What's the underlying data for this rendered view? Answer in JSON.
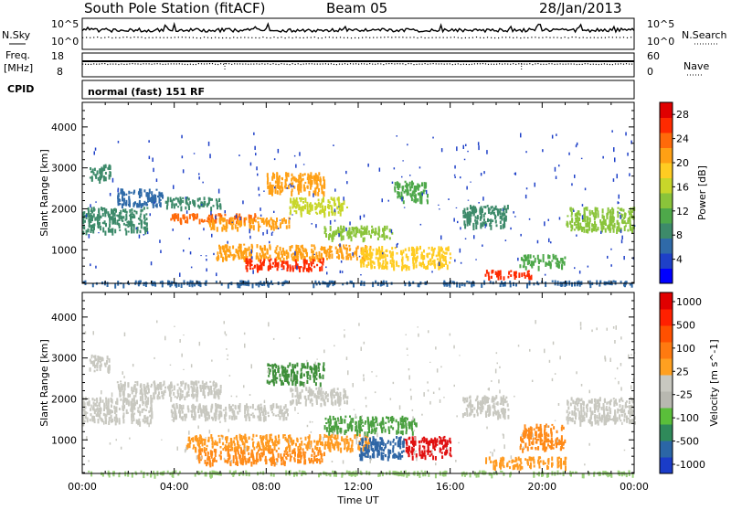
{
  "header": {
    "station": "South Pole Station (fitACF)",
    "beam": "Beam 05",
    "date": "28/Jan/2013"
  },
  "panels": {
    "nsky": {
      "left_label": "N.Sky",
      "right_label": "N.Search",
      "ticks_left": [
        "10^5",
        "10^0"
      ],
      "ticks_right": [
        "10^5",
        "10^0"
      ]
    },
    "freq": {
      "left_label_1": "Freq.",
      "left_label_2": "[MHz]",
      "ticks_left": [
        "18",
        "8"
      ],
      "right_label": "Nave",
      "ticks_right": [
        "60",
        "0"
      ]
    },
    "cpid": {
      "left_label": "CPID",
      "text": "normal (fast) 151 RF"
    }
  },
  "chart_data": [
    {
      "type": "heatmap",
      "title": "",
      "xlabel": "Time UT",
      "ylabel": "Slant Range [km]",
      "x_ticks": [
        "00:00",
        "04:00",
        "08:00",
        "12:00",
        "16:00",
        "20:00",
        "00:00"
      ],
      "y_ticks": [
        "1000",
        "2000",
        "3000",
        "4000"
      ],
      "xlim_hours": [
        0,
        24
      ],
      "ylim_km": [
        180,
        4600
      ],
      "colorbar": {
        "label": "Power [dB]",
        "ticks": [
          "4",
          "8",
          "12",
          "16",
          "20",
          "24",
          "28"
        ],
        "range": [
          0,
          30
        ],
        "colors": [
          "#0000ff",
          "#1e40c8",
          "#2f6aa8",
          "#3d8a6a",
          "#4ea84a",
          "#8ac43a",
          "#c8d62a",
          "#ffcc22",
          "#ffa014",
          "#ff6a0a",
          "#ff2a00",
          "#e00000"
        ]
      },
      "features": [
        {
          "t0": 0.0,
          "t1": 2.8,
          "r0": 1450,
          "r1": 2050,
          "level": 8
        },
        {
          "t0": 0.3,
          "t1": 1.2,
          "r0": 2700,
          "r1": 3100,
          "level": 9
        },
        {
          "t0": 1.5,
          "t1": 3.5,
          "r0": 2100,
          "r1": 2500,
          "level": 7
        },
        {
          "t0": 3.6,
          "t1": 6.0,
          "r0": 2050,
          "r1": 2300,
          "level": 8
        },
        {
          "t0": 3.8,
          "t1": 7.5,
          "r0": 1700,
          "r1": 1900,
          "level": 24
        },
        {
          "t0": 5.5,
          "t1": 9.0,
          "r0": 1550,
          "r1": 1800,
          "level": 20
        },
        {
          "t0": 5.8,
          "t1": 12.5,
          "r0": 800,
          "r1": 1150,
          "level": 22
        },
        {
          "t0": 7.0,
          "t1": 10.5,
          "r0": 550,
          "r1": 800,
          "level": 26
        },
        {
          "t0": 8.0,
          "t1": 10.5,
          "r0": 2400,
          "r1": 2900,
          "level": 20
        },
        {
          "t0": 9.0,
          "t1": 11.5,
          "r0": 1900,
          "r1": 2300,
          "level": 16
        },
        {
          "t0": 10.5,
          "t1": 13.5,
          "r0": 1300,
          "r1": 1600,
          "level": 14
        },
        {
          "t0": 12.0,
          "t1": 16.0,
          "r0": 600,
          "r1": 1100,
          "level": 18
        },
        {
          "t0": 13.5,
          "t1": 15.0,
          "r0": 2200,
          "r1": 2700,
          "level": 10
        },
        {
          "t0": 16.5,
          "t1": 18.5,
          "r0": 1600,
          "r1": 2100,
          "level": 8
        },
        {
          "t0": 17.5,
          "t1": 19.5,
          "r0": 350,
          "r1": 520,
          "level": 26
        },
        {
          "t0": 19.0,
          "t1": 21.0,
          "r0": 600,
          "r1": 900,
          "level": 12
        },
        {
          "t0": 21.0,
          "t1": 24.0,
          "r0": 1500,
          "r1": 2050,
          "level": 14
        },
        {
          "t0": 0.0,
          "t1": 24.0,
          "r0": 180,
          "r1": 260,
          "level": 6
        }
      ]
    },
    {
      "type": "heatmap",
      "title": "",
      "xlabel": "Time UT",
      "ylabel": "Slant Range [km]",
      "x_ticks": [
        "00:00",
        "04:00",
        "08:00",
        "12:00",
        "16:00",
        "20:00",
        "00:00"
      ],
      "y_ticks": [
        "1000",
        "2000",
        "3000",
        "4000"
      ],
      "xlim_hours": [
        0,
        24
      ],
      "ylim_km": [
        180,
        4600
      ],
      "colorbar": {
        "label": "Velocity [m s^-1]",
        "ticks": [
          "1000",
          "500",
          "100",
          "25",
          "-25",
          "-100",
          "-500",
          "-1000"
        ],
        "colors": [
          "#1a3cc8",
          "#2b66a6",
          "#2f8a5a",
          "#5abf3a",
          "#b8b8b0",
          "#c8c8c0",
          "#ffa020",
          "#ff7a10",
          "#ff5000",
          "#ff2000",
          "#e00000"
        ]
      },
      "features": [
        {
          "t0": 0.0,
          "t1": 3.0,
          "r0": 1450,
          "r1": 2050,
          "color": "#c8c8c0"
        },
        {
          "t0": 0.3,
          "t1": 1.2,
          "r0": 2700,
          "r1": 3100,
          "color": "#c8c8c0"
        },
        {
          "t0": 1.5,
          "t1": 6.0,
          "r0": 2050,
          "r1": 2450,
          "color": "#c8c8c0"
        },
        {
          "t0": 3.8,
          "t1": 9.0,
          "r0": 1550,
          "r1": 1900,
          "color": "#c8c8c0"
        },
        {
          "t0": 4.5,
          "t1": 12.5,
          "r0": 800,
          "r1": 1150,
          "color": "#ff9a20"
        },
        {
          "t0": 5.0,
          "t1": 10.5,
          "r0": 450,
          "r1": 800,
          "color": "#ff8a18"
        },
        {
          "t0": 8.0,
          "t1": 10.5,
          "r0": 2400,
          "r1": 2900,
          "color": "#3f8f3a"
        },
        {
          "t0": 9.0,
          "t1": 11.5,
          "r0": 1900,
          "r1": 2300,
          "color": "#c8c8c0"
        },
        {
          "t0": 10.5,
          "t1": 14.5,
          "r0": 1200,
          "r1": 1600,
          "color": "#4aa040"
        },
        {
          "t0": 12.0,
          "t1": 14.0,
          "r0": 600,
          "r1": 1100,
          "color": "#2f66a6"
        },
        {
          "t0": 14.0,
          "t1": 16.0,
          "r0": 600,
          "r1": 1100,
          "color": "#e01010"
        },
        {
          "t0": 16.5,
          "t1": 18.5,
          "r0": 1600,
          "r1": 2100,
          "color": "#c8c8c0"
        },
        {
          "t0": 17.5,
          "t1": 21.0,
          "r0": 350,
          "r1": 600,
          "color": "#ff9a20"
        },
        {
          "t0": 19.0,
          "t1": 21.0,
          "r0": 800,
          "r1": 1400,
          "color": "#ff8a18"
        },
        {
          "t0": 21.0,
          "t1": 24.0,
          "r0": 1450,
          "r1": 2050,
          "color": "#c8c8c0"
        },
        {
          "t0": 0.0,
          "t1": 24.0,
          "r0": 180,
          "r1": 260,
          "color": "#9ad27a"
        }
      ]
    }
  ]
}
